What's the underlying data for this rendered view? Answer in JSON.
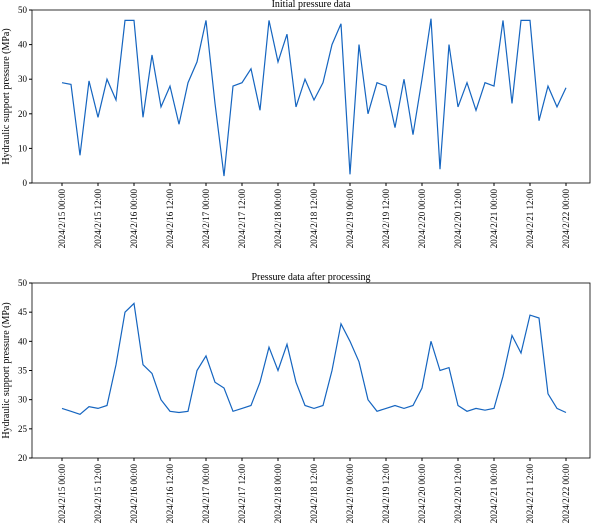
{
  "chart_data": [
    {
      "type": "line",
      "title": "Initial pressure data",
      "y_label": "Hydraulic support pressure (MPa)",
      "color": "#1565c0",
      "xlim": [
        "2024/2/14 14:00",
        "2024/2/22 08:00"
      ],
      "xticks": [
        "2024/2/15 00:00",
        "2024/2/15 12:00",
        "2024/2/16 00:00",
        "2024/2/16 12:00",
        "2024/2/17 00:00",
        "2024/2/17 12:00",
        "2024/2/18 00:00",
        "2024/2/18 12:00",
        "2024/2/19 00:00",
        "2024/2/19 12:00",
        "2024/2/20 00:00",
        "2024/2/20 12:00",
        "2024/2/21 00:00",
        "2024/2/21 12:00",
        "2024/2/22 00:00"
      ],
      "ylim": [
        0,
        50
      ],
      "yticks": [
        0,
        10,
        20,
        30,
        40,
        50
      ],
      "x": [
        "2024/2/15 00:00",
        "2024/2/15 03:00",
        "2024/2/15 06:00",
        "2024/2/15 09:00",
        "2024/2/15 12:00",
        "2024/2/15 15:00",
        "2024/2/15 18:00",
        "2024/2/15 21:00",
        "2024/2/16 00:00",
        "2024/2/16 03:00",
        "2024/2/16 06:00",
        "2024/2/16 09:00",
        "2024/2/16 12:00",
        "2024/2/16 15:00",
        "2024/2/16 18:00",
        "2024/2/16 21:00",
        "2024/2/17 00:00",
        "2024/2/17 03:00",
        "2024/2/17 06:00",
        "2024/2/17 09:00",
        "2024/2/17 12:00",
        "2024/2/17 15:00",
        "2024/2/17 18:00",
        "2024/2/17 21:00",
        "2024/2/18 00:00",
        "2024/2/18 03:00",
        "2024/2/18 06:00",
        "2024/2/18 09:00",
        "2024/2/18 12:00",
        "2024/2/18 15:00",
        "2024/2/18 18:00",
        "2024/2/18 21:00",
        "2024/2/19 00:00",
        "2024/2/19 03:00",
        "2024/2/19 06:00",
        "2024/2/19 09:00",
        "2024/2/19 12:00",
        "2024/2/19 15:00",
        "2024/2/19 18:00",
        "2024/2/19 21:00",
        "2024/2/20 00:00",
        "2024/2/20 03:00",
        "2024/2/20 06:00",
        "2024/2/20 09:00",
        "2024/2/20 12:00",
        "2024/2/20 15:00",
        "2024/2/20 18:00",
        "2024/2/20 21:00",
        "2024/2/21 00:00",
        "2024/2/21 03:00",
        "2024/2/21 06:00",
        "2024/2/21 09:00",
        "2024/2/21 12:00",
        "2024/2/21 15:00",
        "2024/2/21 18:00",
        "2024/2/21 21:00",
        "2024/2/22 00:00"
      ],
      "values": [
        29,
        28.5,
        8,
        29.5,
        19,
        30,
        24,
        47,
        47,
        19,
        37,
        22,
        28,
        17,
        29,
        35,
        47,
        23,
        2,
        28,
        29,
        33,
        21,
        47,
        35,
        43,
        22,
        30,
        24,
        29,
        40,
        46,
        2.5,
        40,
        20,
        29,
        28,
        16,
        30,
        14,
        30,
        47.5,
        4,
        40,
        22,
        29,
        21,
        29,
        28,
        47,
        23,
        47,
        47,
        18,
        28,
        22,
        27.5
      ]
    },
    {
      "type": "line",
      "title": "Pressure data after processing",
      "y_label": "Hydraulic support pressure (MPa)",
      "color": "#1565c0",
      "xlim": [
        "2024/2/14 14:00",
        "2024/2/22 08:00"
      ],
      "xticks": [
        "2024/2/15 00:00",
        "2024/2/15 12:00",
        "2024/2/16 00:00",
        "2024/2/16 12:00",
        "2024/2/17 00:00",
        "2024/2/17 12:00",
        "2024/2/18 00:00",
        "2024/2/18 12:00",
        "2024/2/19 00:00",
        "2024/2/19 12:00",
        "2024/2/20 00:00",
        "2024/2/20 12:00",
        "2024/2/21 00:00",
        "2024/2/21 12:00",
        "2024/2/22 00:00"
      ],
      "ylim": [
        20,
        50
      ],
      "yticks": [
        20,
        25,
        30,
        35,
        40,
        45,
        50
      ],
      "x": [
        "2024/2/15 00:00",
        "2024/2/15 03:00",
        "2024/2/15 06:00",
        "2024/2/15 09:00",
        "2024/2/15 12:00",
        "2024/2/15 15:00",
        "2024/2/15 18:00",
        "2024/2/15 21:00",
        "2024/2/16 00:00",
        "2024/2/16 03:00",
        "2024/2/16 06:00",
        "2024/2/16 09:00",
        "2024/2/16 12:00",
        "2024/2/16 15:00",
        "2024/2/16 18:00",
        "2024/2/16 21:00",
        "2024/2/17 00:00",
        "2024/2/17 03:00",
        "2024/2/17 06:00",
        "2024/2/17 09:00",
        "2024/2/17 12:00",
        "2024/2/17 15:00",
        "2024/2/17 18:00",
        "2024/2/17 21:00",
        "2024/2/18 00:00",
        "2024/2/18 03:00",
        "2024/2/18 06:00",
        "2024/2/18 09:00",
        "2024/2/18 12:00",
        "2024/2/18 15:00",
        "2024/2/18 18:00",
        "2024/2/18 21:00",
        "2024/2/19 00:00",
        "2024/2/19 03:00",
        "2024/2/19 06:00",
        "2024/2/19 09:00",
        "2024/2/19 12:00",
        "2024/2/19 15:00",
        "2024/2/19 18:00",
        "2024/2/19 21:00",
        "2024/2/20 00:00",
        "2024/2/20 03:00",
        "2024/2/20 06:00",
        "2024/2/20 09:00",
        "2024/2/20 12:00",
        "2024/2/20 15:00",
        "2024/2/20 18:00",
        "2024/2/20 21:00",
        "2024/2/21 00:00",
        "2024/2/21 03:00",
        "2024/2/21 06:00",
        "2024/2/21 09:00",
        "2024/2/21 12:00",
        "2024/2/21 15:00",
        "2024/2/21 18:00",
        "2024/2/21 21:00",
        "2024/2/22 00:00"
      ],
      "values": [
        28.5,
        28,
        27.5,
        28.8,
        28.5,
        29,
        36,
        45,
        46.5,
        36,
        34.5,
        30,
        28,
        27.8,
        28,
        35,
        37.5,
        33,
        32,
        28,
        28.5,
        29,
        33,
        39,
        35,
        39.5,
        33,
        29,
        28.5,
        29,
        35,
        43,
        40,
        36.5,
        30,
        28,
        28.5,
        29,
        28.5,
        29,
        32,
        40,
        35,
        35.5,
        29,
        28,
        28.5,
        28.2,
        28.5,
        34,
        41,
        38,
        44.5,
        44,
        31,
        28.5,
        27.8
      ]
    }
  ]
}
